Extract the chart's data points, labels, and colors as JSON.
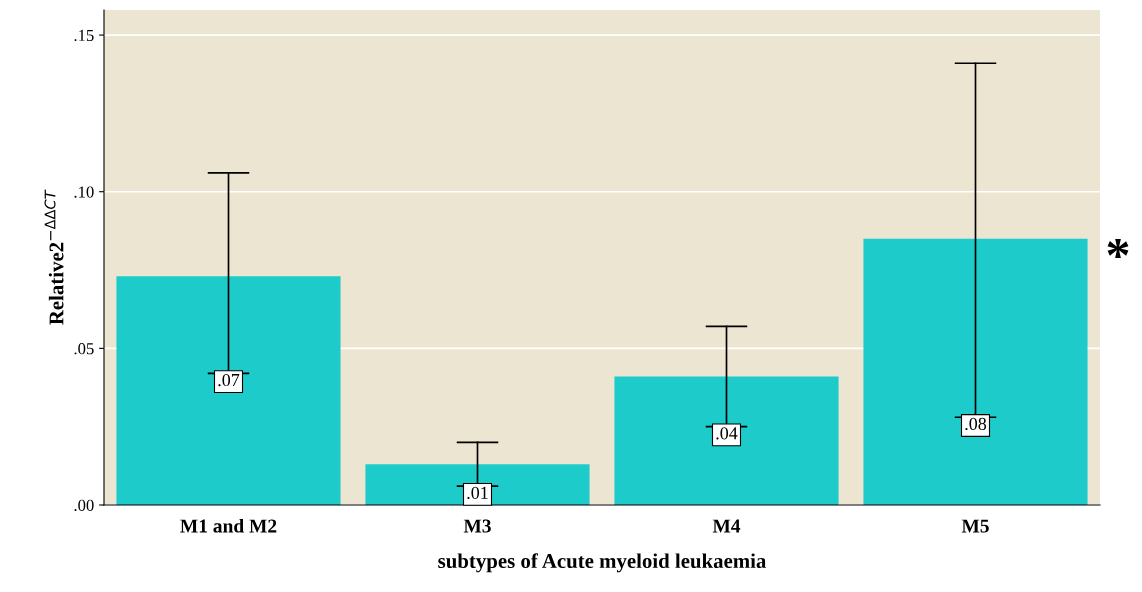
{
  "chart_data": {
    "type": "bar",
    "xlabel": "subtypes of Acute myeloid leukaemia",
    "ylabel": "Relative2$^{−ΔΔCT}$",
    "categories": [
      "M1 and M2",
      "M3",
      "M4",
      "M5"
    ],
    "values": [
      0.073,
      0.013,
      0.041,
      0.085
    ],
    "errors": [
      [
        0.042,
        0.106
      ],
      [
        0.006,
        0.02
      ],
      [
        0.025,
        0.057
      ],
      [
        0.028,
        0.141
      ]
    ],
    "value_labels": [
      ".07",
      ".01",
      ".04",
      ".08"
    ],
    "color": "#1ecbcb",
    "ylim": [
      0,
      0.158
    ],
    "yticks": [
      {
        "value": 0,
        "label": ".00"
      },
      {
        "value": 0.05,
        "label": ".05"
      },
      {
        "value": 0.1,
        "label": ".10"
      },
      {
        "value": 0.15,
        "label": ".15"
      }
    ],
    "grid": "y",
    "annotations": [
      "*"
    ]
  }
}
